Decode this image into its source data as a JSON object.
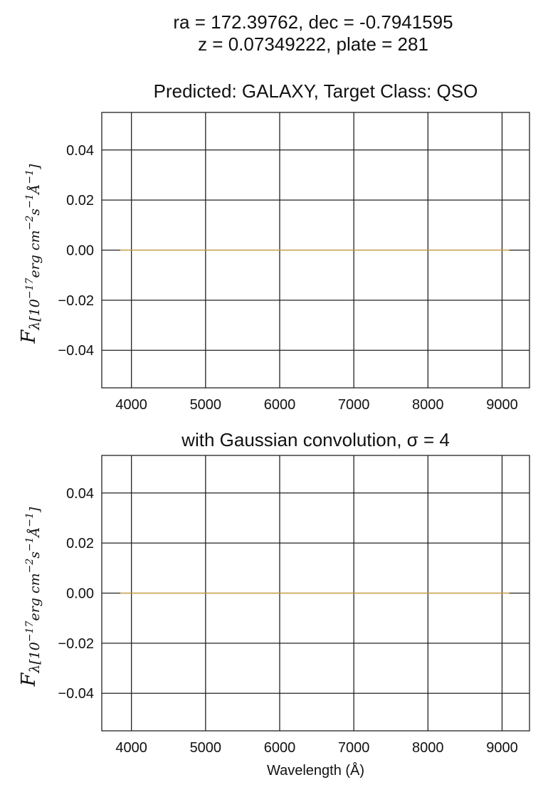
{
  "figure": {
    "suptitle_line1": "ra = 172.39762, dec = -0.7941595",
    "suptitle_line2": "z = 0.07349222, plate = 281"
  },
  "chart_data": [
    {
      "type": "line",
      "title": "Predicted: GALAXY, Target Class: QSO",
      "xlabel": "",
      "ylabel": "F_λ[10^-17 erg cm^-2 s^-1 Å^-1]",
      "xlim": [
        3600,
        9370
      ],
      "ylim": [
        -0.055,
        0.055
      ],
      "xticks": [
        4000,
        5000,
        6000,
        7000,
        8000,
        9000
      ],
      "xtick_labels": [
        "4000",
        "5000",
        "6000",
        "7000",
        "8000",
        "9000"
      ],
      "yticks": [
        0.04,
        0.02,
        0.0,
        -0.02,
        -0.04
      ],
      "ytick_labels": [
        "0.04",
        "0.02",
        "0.00",
        "−0.02",
        "−0.04"
      ],
      "grid": true,
      "series": [
        {
          "color": "#d6a640",
          "x": [
            3850,
            9100
          ],
          "y": [
            0.0,
            0.0
          ]
        }
      ]
    },
    {
      "type": "line",
      "title": "with Gaussian convolution, σ = 4",
      "xlabel": "Wavelength (Å)",
      "ylabel": "F_λ[10^-17 erg cm^-2 s^-1 Å^-1]",
      "xlim": [
        3600,
        9370
      ],
      "ylim": [
        -0.055,
        0.055
      ],
      "xticks": [
        4000,
        5000,
        6000,
        7000,
        8000,
        9000
      ],
      "xtick_labels": [
        "4000",
        "5000",
        "6000",
        "7000",
        "8000",
        "9000"
      ],
      "yticks": [
        0.04,
        0.02,
        0.0,
        -0.02,
        -0.04
      ],
      "ytick_labels": [
        "0.04",
        "0.02",
        "0.00",
        "−0.02",
        "−0.04"
      ],
      "grid": true,
      "series": [
        {
          "color": "#d6a640",
          "x": [
            3850,
            9100
          ],
          "y": [
            0.0,
            0.0
          ]
        }
      ]
    }
  ]
}
